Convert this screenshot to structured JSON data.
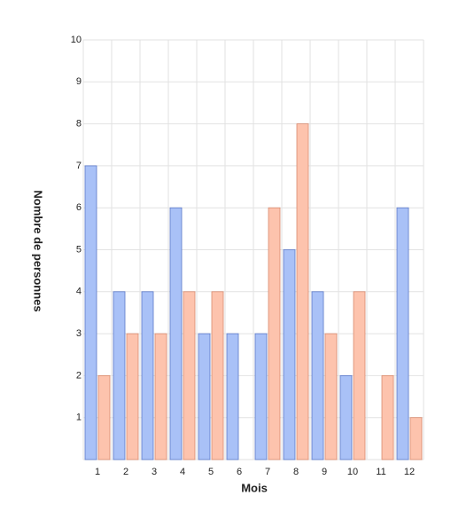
{
  "chart_data": {
    "type": "bar",
    "x_label": "Mois",
    "y_label": "Nombre de personnes",
    "categories": [
      "1",
      "2",
      "3",
      "4",
      "5",
      "6",
      "7",
      "8",
      "9",
      "10",
      "11",
      "12"
    ],
    "series": [
      {
        "color": "#a9c1f7",
        "values": [
          7,
          4,
          4,
          6,
          3,
          3,
          3,
          5,
          4,
          2,
          0,
          6
        ]
      },
      {
        "color": "#fdc3ad",
        "values": [
          2,
          3,
          3,
          4,
          4,
          0,
          6,
          8,
          3,
          4,
          2,
          1
        ]
      }
    ],
    "ylim": [
      0,
      10
    ],
    "yticks": [
      1,
      2,
      3,
      4,
      5,
      6,
      7,
      8,
      9,
      10
    ],
    "grid": true
  }
}
